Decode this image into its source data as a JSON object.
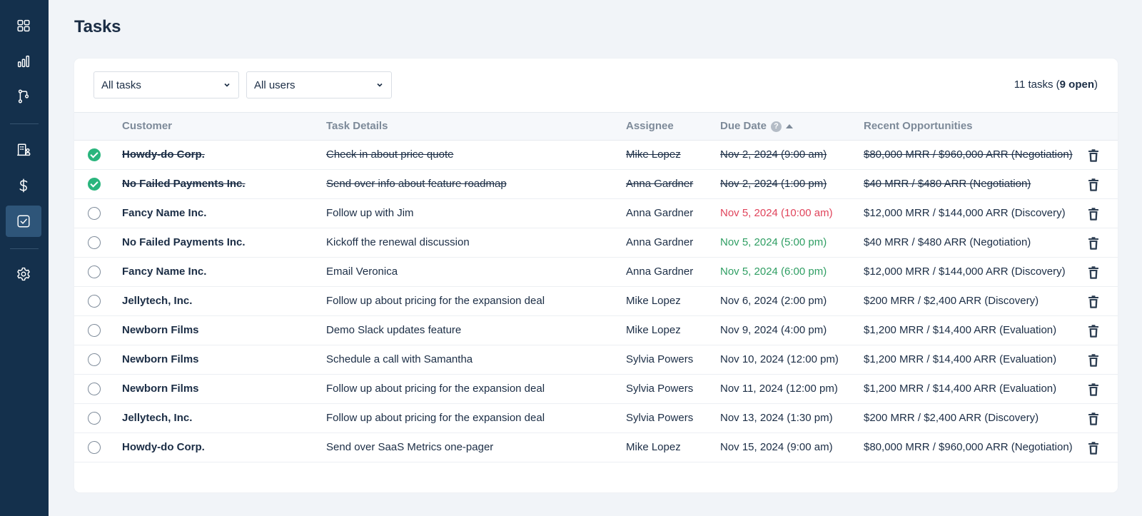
{
  "page": {
    "title": "Tasks"
  },
  "sidebar": {
    "items": [
      {
        "name": "dashboard",
        "icon": "grid-icon",
        "active": false
      },
      {
        "name": "reports",
        "icon": "bar-chart-icon",
        "active": false
      },
      {
        "name": "pipelines",
        "icon": "branch-icon",
        "active": false
      },
      {
        "name": "customers",
        "icon": "building-icon",
        "active": false
      },
      {
        "name": "revenue",
        "icon": "dollar-icon",
        "active": false
      },
      {
        "name": "tasks",
        "icon": "checkbox-icon",
        "active": true
      },
      {
        "name": "settings",
        "icon": "gear-icon",
        "active": false
      }
    ]
  },
  "filters": {
    "task_filter": "All tasks",
    "user_filter": "All users",
    "count_prefix": "11 tasks (",
    "count_open": "9 open",
    "count_suffix": ")"
  },
  "table": {
    "columns": {
      "customer": "Customer",
      "details": "Task Details",
      "assignee": "Assignee",
      "due": "Due Date",
      "due_help": "?",
      "opportunities": "Recent Opportunities"
    },
    "rows": [
      {
        "done": true,
        "customer": "Howdy-do Corp.",
        "details": "Check in about price quote",
        "assignee": "Mike Lopez",
        "due": "Nov 2, 2024 (9:00 am)",
        "due_status": "normal",
        "opportunity": "$80,000 MRR / $960,000 ARR (Negotiation)"
      },
      {
        "done": true,
        "customer": "No Failed Payments Inc.",
        "details": "Send over info about feature roadmap",
        "assignee": "Anna Gardner",
        "due": "Nov 2, 2024 (1:00 pm)",
        "due_status": "normal",
        "opportunity": "$40 MRR / $480 ARR (Negotiation)"
      },
      {
        "done": false,
        "customer": "Fancy Name Inc.",
        "details": "Follow up with Jim",
        "assignee": "Anna Gardner",
        "due": "Nov 5, 2024 (10:00 am)",
        "due_status": "overdue",
        "opportunity": "$12,000 MRR / $144,000 ARR (Discovery)"
      },
      {
        "done": false,
        "customer": "No Failed Payments Inc.",
        "details": "Kickoff the renewal discussion",
        "assignee": "Anna Gardner",
        "due": "Nov 5, 2024 (5:00 pm)",
        "due_status": "today",
        "opportunity": "$40 MRR / $480 ARR (Negotiation)"
      },
      {
        "done": false,
        "customer": "Fancy Name Inc.",
        "details": "Email Veronica",
        "assignee": "Anna Gardner",
        "due": "Nov 5, 2024 (6:00 pm)",
        "due_status": "today",
        "opportunity": "$12,000 MRR / $144,000 ARR (Discovery)"
      },
      {
        "done": false,
        "customer": "Jellytech, Inc.",
        "details": "Follow up about pricing for the expansion deal",
        "assignee": "Mike Lopez",
        "due": "Nov 6, 2024 (2:00 pm)",
        "due_status": "normal",
        "opportunity": "$200 MRR / $2,400 ARR (Discovery)"
      },
      {
        "done": false,
        "customer": "Newborn Films",
        "details": "Demo Slack updates feature",
        "assignee": "Mike Lopez",
        "due": "Nov 9, 2024 (4:00 pm)",
        "due_status": "normal",
        "opportunity": "$1,200 MRR / $14,400 ARR (Evaluation)"
      },
      {
        "done": false,
        "customer": "Newborn Films",
        "details": "Schedule a call with Samantha",
        "assignee": "Sylvia Powers",
        "due": "Nov 10, 2024 (12:00 pm)",
        "due_status": "normal",
        "opportunity": "$1,200 MRR / $14,400 ARR (Evaluation)"
      },
      {
        "done": false,
        "customer": "Newborn Films",
        "details": "Follow up about pricing for the expansion deal",
        "assignee": "Sylvia Powers",
        "due": "Nov 11, 2024 (12:00 pm)",
        "due_status": "normal",
        "opportunity": "$1,200 MRR / $14,400 ARR (Evaluation)"
      },
      {
        "done": false,
        "customer": "Jellytech, Inc.",
        "details": "Follow up about pricing for the expansion deal",
        "assignee": "Sylvia Powers",
        "due": "Nov 13, 2024 (1:30 pm)",
        "due_status": "normal",
        "opportunity": "$200 MRR / $2,400 ARR (Discovery)"
      },
      {
        "done": false,
        "customer": "Howdy-do Corp.",
        "details": "Send over SaaS Metrics one-pager",
        "assignee": "Mike Lopez",
        "due": "Nov 15, 2024 (9:00 am)",
        "due_status": "normal",
        "opportunity": "$80,000 MRR / $960,000 ARR (Negotiation)"
      }
    ]
  },
  "colors": {
    "sidebar_bg": "#14304c",
    "sidebar_active": "#2e5579",
    "done_check": "#2ab57d",
    "overdue": "#e0445c",
    "due_today": "#2f9e63"
  }
}
